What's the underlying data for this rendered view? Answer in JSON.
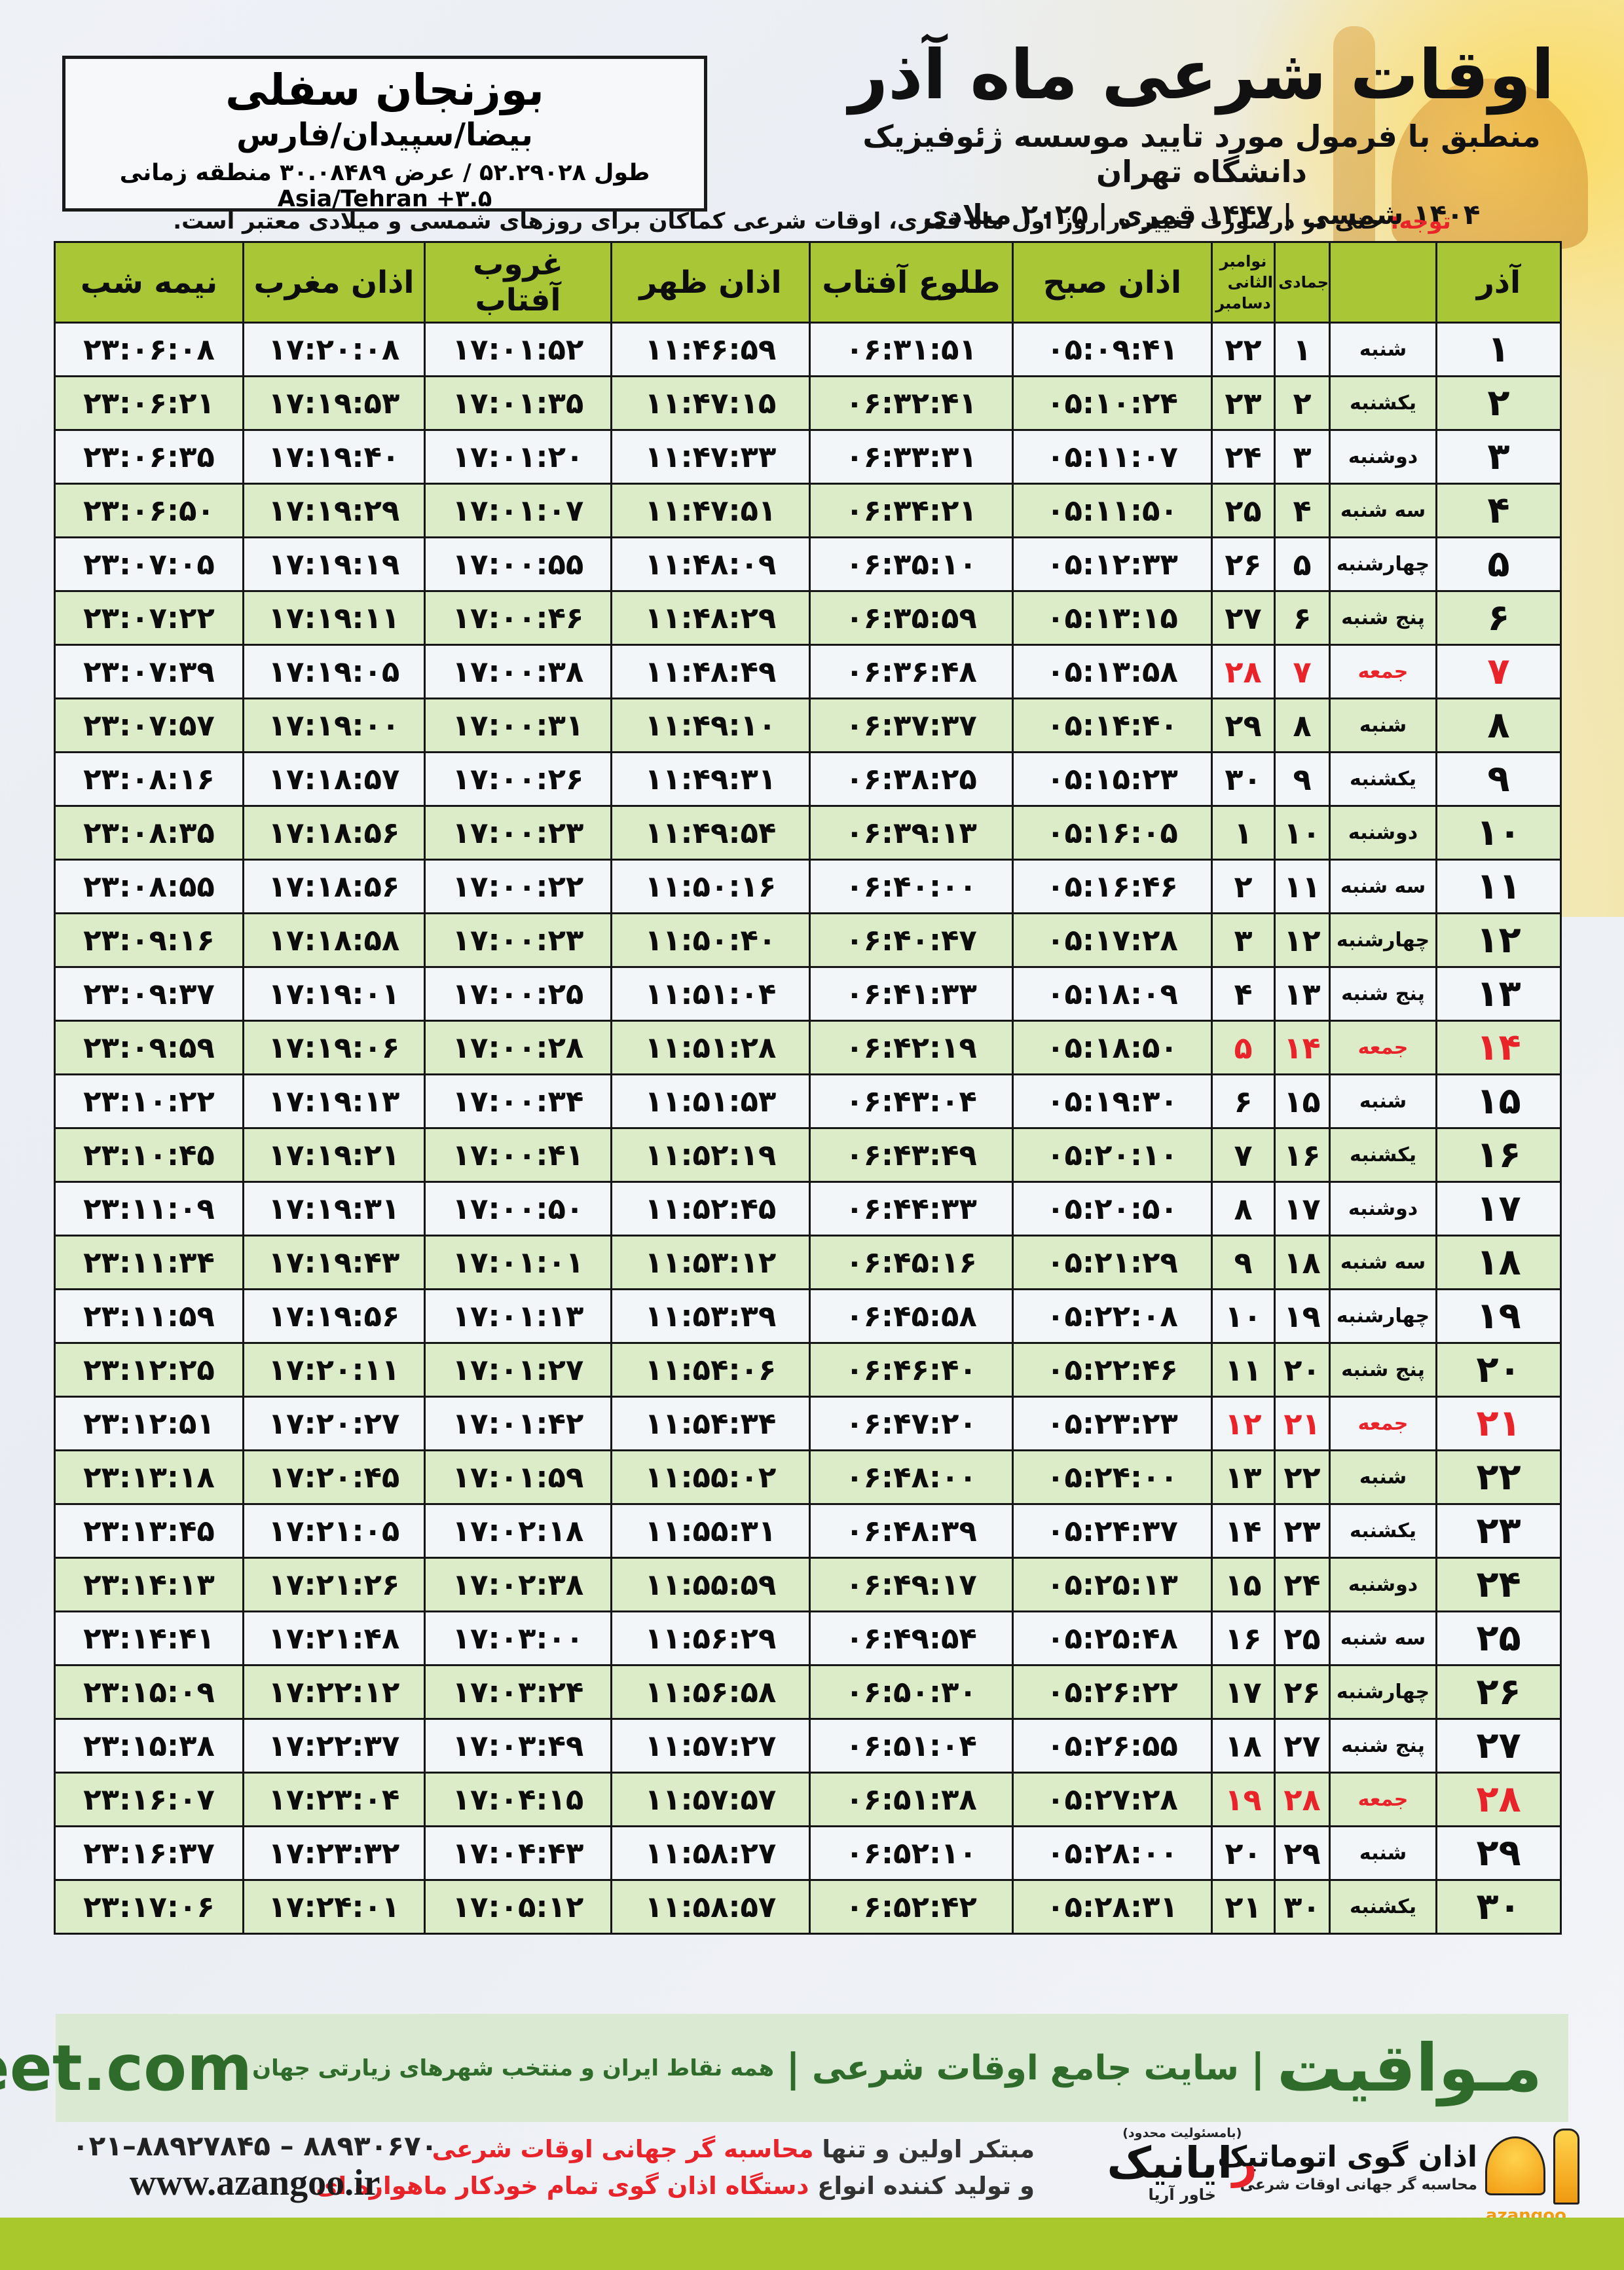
{
  "header": {
    "title": "اوقات شرعی ماه آذر",
    "subtitle": "منطبق با فرمول مورد تایید موسسه ژئوفیزیک دانشگاه تهران",
    "dates": "۱۴۰۴ شمسی | ۱۴۴۷ قمری | ۲۰۲۵ میلادی"
  },
  "location": {
    "name": "بوزنجان سفلی",
    "region": "بیضا/سپیدان/فارس",
    "coords": "طول ۵۲.۲۹۰۲۸ / عرض ۳۰.۰۸۴۸۹ منطقه زمانی Asia/Tehran +۳.۵"
  },
  "note": {
    "label": "توجه:",
    "text": " حتی در درصورت تغییر در روز اول ماه قمری، اوقات شرعی کماکان برای روزهای شمسی و میلادی معتبر است."
  },
  "table": {
    "columns": {
      "azar": "آذر",
      "weekday": "",
      "hijri": "جمادی الثانی",
      "greg_top": "نوامبر",
      "greg_bottom": "دسامبر",
      "fajr": "اذان صبح",
      "sunrise": "طلوع آفتاب",
      "dhuhr": "اذان ظهر",
      "sunset": "غروب آفتاب",
      "maghrib": "اذان مغرب",
      "midnight": "نیمه شب"
    },
    "rows": [
      {
        "azar": 1,
        "weekday": "شنبه",
        "hijri": 1,
        "greg": 22,
        "fajr": "05:09:41",
        "sunrise": "06:31:51",
        "dhuhr": "11:46:59",
        "sunset": "17:01:52",
        "maghrib": "17:20:08",
        "midnight": "23:06:08",
        "friday": false
      },
      {
        "azar": 2,
        "weekday": "یکشنبه",
        "hijri": 2,
        "greg": 23,
        "fajr": "05:10:24",
        "sunrise": "06:32:41",
        "dhuhr": "11:47:15",
        "sunset": "17:01:35",
        "maghrib": "17:19:53",
        "midnight": "23:06:21",
        "friday": false
      },
      {
        "azar": 3,
        "weekday": "دوشنبه",
        "hijri": 3,
        "greg": 24,
        "fajr": "05:11:07",
        "sunrise": "06:33:31",
        "dhuhr": "11:47:33",
        "sunset": "17:01:20",
        "maghrib": "17:19:40",
        "midnight": "23:06:35",
        "friday": false
      },
      {
        "azar": 4,
        "weekday": "سه شنبه",
        "hijri": 4,
        "greg": 25,
        "fajr": "05:11:50",
        "sunrise": "06:34:21",
        "dhuhr": "11:47:51",
        "sunset": "17:01:07",
        "maghrib": "17:19:29",
        "midnight": "23:06:50",
        "friday": false
      },
      {
        "azar": 5,
        "weekday": "چهارشنبه",
        "hijri": 5,
        "greg": 26,
        "fajr": "05:12:33",
        "sunrise": "06:35:10",
        "dhuhr": "11:48:09",
        "sunset": "17:00:55",
        "maghrib": "17:19:19",
        "midnight": "23:07:05",
        "friday": false
      },
      {
        "azar": 6,
        "weekday": "پنج شنبه",
        "hijri": 6,
        "greg": 27,
        "fajr": "05:13:15",
        "sunrise": "06:35:59",
        "dhuhr": "11:48:29",
        "sunset": "17:00:46",
        "maghrib": "17:19:11",
        "midnight": "23:07:22",
        "friday": false
      },
      {
        "azar": 7,
        "weekday": "جمعه",
        "hijri": 7,
        "greg": 28,
        "fajr": "05:13:58",
        "sunrise": "06:36:48",
        "dhuhr": "11:48:49",
        "sunset": "17:00:38",
        "maghrib": "17:19:05",
        "midnight": "23:07:39",
        "friday": true
      },
      {
        "azar": 8,
        "weekday": "شنبه",
        "hijri": 8,
        "greg": 29,
        "fajr": "05:14:40",
        "sunrise": "06:37:37",
        "dhuhr": "11:49:10",
        "sunset": "17:00:31",
        "maghrib": "17:19:00",
        "midnight": "23:07:57",
        "friday": false
      },
      {
        "azar": 9,
        "weekday": "یکشنبه",
        "hijri": 9,
        "greg": 30,
        "fajr": "05:15:23",
        "sunrise": "06:38:25",
        "dhuhr": "11:49:31",
        "sunset": "17:00:26",
        "maghrib": "17:18:57",
        "midnight": "23:08:16",
        "friday": false
      },
      {
        "azar": 10,
        "weekday": "دوشنبه",
        "hijri": 10,
        "greg": 1,
        "fajr": "05:16:05",
        "sunrise": "06:39:13",
        "dhuhr": "11:49:54",
        "sunset": "17:00:23",
        "maghrib": "17:18:56",
        "midnight": "23:08:35",
        "friday": false
      },
      {
        "azar": 11,
        "weekday": "سه شنبه",
        "hijri": 11,
        "greg": 2,
        "fajr": "05:16:46",
        "sunrise": "06:40:00",
        "dhuhr": "11:50:16",
        "sunset": "17:00:22",
        "maghrib": "17:18:56",
        "midnight": "23:08:55",
        "friday": false
      },
      {
        "azar": 12,
        "weekday": "چهارشنبه",
        "hijri": 12,
        "greg": 3,
        "fajr": "05:17:28",
        "sunrise": "06:40:47",
        "dhuhr": "11:50:40",
        "sunset": "17:00:23",
        "maghrib": "17:18:58",
        "midnight": "23:09:16",
        "friday": false
      },
      {
        "azar": 13,
        "weekday": "پنج شنبه",
        "hijri": 13,
        "greg": 4,
        "fajr": "05:18:09",
        "sunrise": "06:41:33",
        "dhuhr": "11:51:04",
        "sunset": "17:00:25",
        "maghrib": "17:19:01",
        "midnight": "23:09:37",
        "friday": false
      },
      {
        "azar": 14,
        "weekday": "جمعه",
        "hijri": 14,
        "greg": 5,
        "fajr": "05:18:50",
        "sunrise": "06:42:19",
        "dhuhr": "11:51:28",
        "sunset": "17:00:28",
        "maghrib": "17:19:06",
        "midnight": "23:09:59",
        "friday": true
      },
      {
        "azar": 15,
        "weekday": "شنبه",
        "hijri": 15,
        "greg": 6,
        "fajr": "05:19:30",
        "sunrise": "06:43:04",
        "dhuhr": "11:51:53",
        "sunset": "17:00:34",
        "maghrib": "17:19:13",
        "midnight": "23:10:22",
        "friday": false
      },
      {
        "azar": 16,
        "weekday": "یکشنبه",
        "hijri": 16,
        "greg": 7,
        "fajr": "05:20:10",
        "sunrise": "06:43:49",
        "dhuhr": "11:52:19",
        "sunset": "17:00:41",
        "maghrib": "17:19:21",
        "midnight": "23:10:45",
        "friday": false
      },
      {
        "azar": 17,
        "weekday": "دوشنبه",
        "hijri": 17,
        "greg": 8,
        "fajr": "05:20:50",
        "sunrise": "06:44:33",
        "dhuhr": "11:52:45",
        "sunset": "17:00:50",
        "maghrib": "17:19:31",
        "midnight": "23:11:09",
        "friday": false
      },
      {
        "azar": 18,
        "weekday": "سه شنبه",
        "hijri": 18,
        "greg": 9,
        "fajr": "05:21:29",
        "sunrise": "06:45:16",
        "dhuhr": "11:53:12",
        "sunset": "17:01:01",
        "maghrib": "17:19:43",
        "midnight": "23:11:34",
        "friday": false
      },
      {
        "azar": 19,
        "weekday": "چهارشنبه",
        "hijri": 19,
        "greg": 10,
        "fajr": "05:22:08",
        "sunrise": "06:45:58",
        "dhuhr": "11:53:39",
        "sunset": "17:01:13",
        "maghrib": "17:19:56",
        "midnight": "23:11:59",
        "friday": false
      },
      {
        "azar": 20,
        "weekday": "پنج شنبه",
        "hijri": 20,
        "greg": 11,
        "fajr": "05:22:46",
        "sunrise": "06:46:40",
        "dhuhr": "11:54:06",
        "sunset": "17:01:27",
        "maghrib": "17:20:11",
        "midnight": "23:12:25",
        "friday": false
      },
      {
        "azar": 21,
        "weekday": "جمعه",
        "hijri": 21,
        "greg": 12,
        "fajr": "05:23:23",
        "sunrise": "06:47:20",
        "dhuhr": "11:54:34",
        "sunset": "17:01:42",
        "maghrib": "17:20:27",
        "midnight": "23:12:51",
        "friday": true
      },
      {
        "azar": 22,
        "weekday": "شنبه",
        "hijri": 22,
        "greg": 13,
        "fajr": "05:24:00",
        "sunrise": "06:48:00",
        "dhuhr": "11:55:02",
        "sunset": "17:01:59",
        "maghrib": "17:20:45",
        "midnight": "23:13:18",
        "friday": false
      },
      {
        "azar": 23,
        "weekday": "یکشنبه",
        "hijri": 23,
        "greg": 14,
        "fajr": "05:24:37",
        "sunrise": "06:48:39",
        "dhuhr": "11:55:31",
        "sunset": "17:02:18",
        "maghrib": "17:21:05",
        "midnight": "23:13:45",
        "friday": false
      },
      {
        "azar": 24,
        "weekday": "دوشنبه",
        "hijri": 24,
        "greg": 15,
        "fajr": "05:25:13",
        "sunrise": "06:49:17",
        "dhuhr": "11:55:59",
        "sunset": "17:02:38",
        "maghrib": "17:21:26",
        "midnight": "23:14:13",
        "friday": false
      },
      {
        "azar": 25,
        "weekday": "سه شنبه",
        "hijri": 25,
        "greg": 16,
        "fajr": "05:25:48",
        "sunrise": "06:49:54",
        "dhuhr": "11:56:29",
        "sunset": "17:03:00",
        "maghrib": "17:21:48",
        "midnight": "23:14:41",
        "friday": false
      },
      {
        "azar": 26,
        "weekday": "چهارشنبه",
        "hijri": 26,
        "greg": 17,
        "fajr": "05:26:22",
        "sunrise": "06:50:30",
        "dhuhr": "11:56:58",
        "sunset": "17:03:24",
        "maghrib": "17:22:12",
        "midnight": "23:15:09",
        "friday": false
      },
      {
        "azar": 27,
        "weekday": "پنج شنبه",
        "hijri": 27,
        "greg": 18,
        "fajr": "05:26:55",
        "sunrise": "06:51:04",
        "dhuhr": "11:57:27",
        "sunset": "17:03:49",
        "maghrib": "17:22:37",
        "midnight": "23:15:38",
        "friday": false
      },
      {
        "azar": 28,
        "weekday": "جمعه",
        "hijri": 28,
        "greg": 19,
        "fajr": "05:27:28",
        "sunrise": "06:51:38",
        "dhuhr": "11:57:57",
        "sunset": "17:04:15",
        "maghrib": "17:23:04",
        "midnight": "23:16:07",
        "friday": true
      },
      {
        "azar": 29,
        "weekday": "شنبه",
        "hijri": 29,
        "greg": 20,
        "fajr": "05:28:00",
        "sunrise": "06:52:10",
        "dhuhr": "11:58:27",
        "sunset": "17:04:43",
        "maghrib": "17:23:32",
        "midnight": "23:16:37",
        "friday": false
      },
      {
        "azar": 30,
        "weekday": "یکشنبه",
        "hijri": 30,
        "greg": 21,
        "fajr": "05:28:31",
        "sunrise": "06:52:42",
        "dhuhr": "11:58:57",
        "sunset": "17:05:12",
        "maghrib": "17:24:01",
        "midnight": "23:17:06",
        "friday": false
      }
    ]
  },
  "footer": {
    "brand": "مـواقیت",
    "sep": "|",
    "desc1": "سایت جامع اوقات شرعی",
    "desc2": "همه نقاط ایران و منتخب شهرهای زیارتی جهان",
    "site": "mavaqeet.com",
    "phone": "۰۲۱–۸۸۹۲۷۸۴۵ – ۸۸۹۳۰۶۷۰",
    "azangoo_site": "www.azangoo.ir",
    "line1_black": "مبتکر اولین و تنها ",
    "line1_red": "محاسبه گر جهانی اوقات شرعی",
    "line2_black": "و تولید کننده انواع ",
    "line2_red": "دستگاه اذان گوی تمام خودکار ماهواره ای",
    "rayanik_small": "(بامسئولیت محدود)",
    "rayanik_first": "ر",
    "rayanik_rest": "ایانیک",
    "rayanik_sub": "خاور آریا",
    "azangoo_logo_text": "azangoo",
    "azangoo_name": "اذان گوی اتوماتیک",
    "azangoo_tagline": "محاسبه گر جهانی اوقات شرعی"
  },
  "colors": {
    "header_green": "#a9c636",
    "row_green": "#dcebc8",
    "row_white": "#f3f6f9",
    "friday_red": "#e8232a",
    "footer_green_bg": "#d9e9d2",
    "footer_green_text": "#2f6b2a",
    "lime_bar": "#a8c82c",
    "azangoo_orange": "#f29c13"
  }
}
